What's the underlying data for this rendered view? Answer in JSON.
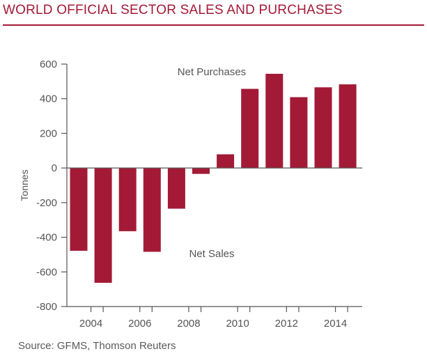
{
  "header": {
    "title": "WORLD OFFICIAL SECTOR SALES AND PURCHASES"
  },
  "footer": {
    "source": "Source: GFMS, Thomson Reuters"
  },
  "colors": {
    "bar": "#a31a36",
    "title": "#a31a36",
    "axis": "#555555",
    "text": "#555555"
  },
  "chart_data": {
    "type": "bar",
    "title": "WORLD OFFICIAL SECTOR SALES AND PURCHASES",
    "xlabel": "",
    "ylabel": "Tonnes",
    "categories": [
      "2004",
      "2005",
      "2006",
      "2007",
      "2008",
      "2009",
      "2010",
      "2011",
      "2012",
      "2013",
      "2014",
      "2015"
    ],
    "values": [
      -478,
      -663,
      -365,
      -484,
      -235,
      -34,
      79,
      457,
      544,
      409,
      466,
      483
    ],
    "ylim": [
      -800,
      600
    ],
    "yticks": [
      600,
      400,
      200,
      0,
      -200,
      -400,
      -600,
      -800
    ],
    "ytick_labels": [
      "600",
      "400",
      "200",
      "0",
      "-200",
      "-400",
      "-600",
      "-800"
    ],
    "xtick_labels": [
      "2004",
      "2006",
      "2008",
      "2010",
      "2012",
      "2014"
    ],
    "annotations": [
      "Net Purchases",
      "Net Sales"
    ],
    "grid": false,
    "legend": "none"
  }
}
